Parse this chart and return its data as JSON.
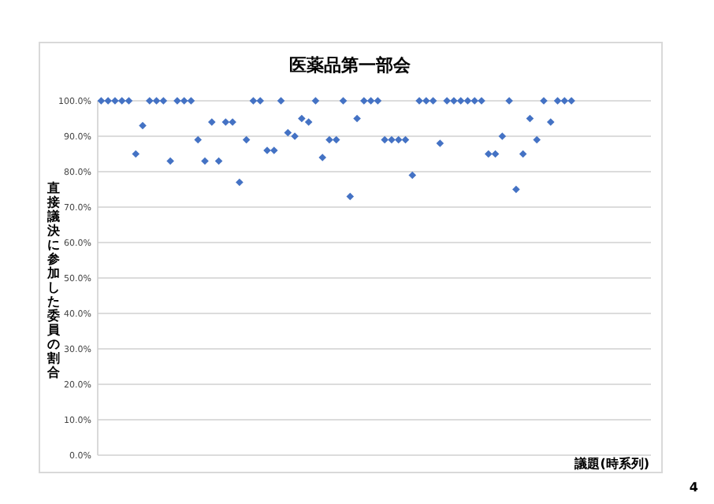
{
  "chart_data": {
    "type": "scatter",
    "title": "医薬品第一部会",
    "ylabel": "直接議決に参加した委員の割合",
    "xlabel": "議題(時系列)",
    "annotations": [
      "4"
    ],
    "marker": "diamond",
    "grid": "y",
    "color": "#4472c4",
    "categories": [
      null,
      null,
      null,
      null,
      null,
      null,
      null,
      null,
      null,
      null,
      null,
      null,
      null,
      null,
      null,
      null,
      null,
      null,
      null,
      null,
      null,
      null,
      null,
      null,
      null,
      null,
      null,
      null,
      null,
      null,
      null,
      null,
      null,
      null,
      null,
      null,
      null,
      null,
      null,
      null,
      null,
      null,
      null,
      null,
      null,
      null,
      null,
      null,
      null,
      null,
      null,
      null,
      null,
      null,
      null,
      null,
      null,
      null,
      null,
      null,
      null,
      null,
      null,
      null,
      null,
      null,
      null,
      null,
      null,
      null,
      null,
      null,
      null,
      null,
      null,
      null,
      null,
      null,
      null,
      null
    ],
    "values": [
      100,
      100,
      100,
      100,
      100,
      85,
      93,
      100,
      100,
      100,
      83,
      100,
      100,
      100,
      89,
      83,
      94,
      83,
      94,
      94,
      77,
      89,
      100,
      100,
      86,
      86,
      100,
      91,
      90,
      95,
      94,
      100,
      84,
      89,
      89,
      100,
      73,
      95,
      100,
      100,
      100,
      89,
      89,
      89,
      89,
      79,
      100,
      100,
      100,
      88,
      100,
      100,
      100,
      100,
      100,
      100,
      85,
      85,
      90,
      100,
      75,
      85,
      95,
      89,
      100,
      94,
      100,
      100,
      100,
      null,
      null,
      null,
      null,
      null,
      null,
      null,
      null,
      null,
      null,
      null
    ],
    "ylim": [
      0,
      100
    ],
    "yticks": [
      {
        "value": 0,
        "label": "0.0%"
      },
      {
        "value": 10,
        "label": "10.0%"
      },
      {
        "value": 20,
        "label": "20.0%"
      },
      {
        "value": 30,
        "label": "30.0%"
      },
      {
        "value": 40,
        "label": "40.0%"
      },
      {
        "value": 50,
        "label": "50.0%"
      },
      {
        "value": 60,
        "label": "60.0%"
      },
      {
        "value": 70,
        "label": "70.0%"
      },
      {
        "value": 80,
        "label": "80.0%"
      },
      {
        "value": 90,
        "label": "90.0%"
      },
      {
        "value": 100,
        "label": "100.0%"
      }
    ]
  }
}
